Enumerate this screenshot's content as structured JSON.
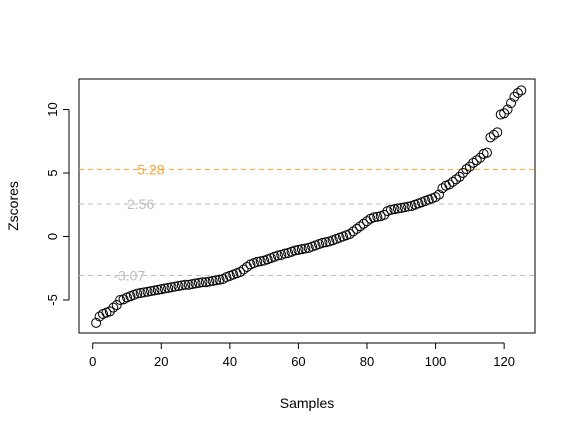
{
  "chart_data": {
    "type": "scatter",
    "xlabel": "Samples",
    "ylabel": "Zscores",
    "xlim": [
      -4.0,
      129.0
    ],
    "ylim": [
      -7.6,
      12.4
    ],
    "x_ticks": [
      0,
      20,
      40,
      60,
      80,
      100,
      120
    ],
    "y_ticks": [
      -5,
      0,
      5,
      10
    ],
    "grid": false,
    "marker": "open-circle",
    "marker_color": "#000000",
    "reference_lines": [
      {
        "value": 5.28,
        "label": "5.28",
        "color": "#F4A43A",
        "style": "dashed",
        "label_x": 13
      },
      {
        "value": 2.56,
        "label": "2.56",
        "color": "#BEBEBE",
        "style": "dashed",
        "label_x": 10
      },
      {
        "value": -3.07,
        "label": "-3.07",
        "color": "#BEBEBE",
        "style": "dashed",
        "label_x": 6
      }
    ],
    "x": [
      1,
      2,
      3,
      4,
      5,
      6,
      7,
      8,
      9,
      10,
      11,
      12,
      13,
      14,
      15,
      16,
      17,
      18,
      19,
      20,
      21,
      22,
      23,
      24,
      25,
      26,
      27,
      28,
      29,
      30,
      31,
      32,
      33,
      34,
      35,
      36,
      37,
      38,
      39,
      40,
      41,
      42,
      43,
      44,
      45,
      46,
      47,
      48,
      49,
      50,
      51,
      52,
      53,
      54,
      55,
      56,
      57,
      58,
      59,
      60,
      61,
      62,
      63,
      64,
      65,
      66,
      67,
      68,
      69,
      70,
      71,
      72,
      73,
      74,
      75,
      76,
      77,
      78,
      79,
      80,
      81,
      82,
      83,
      84,
      85,
      86,
      87,
      88,
      89,
      90,
      91,
      92,
      93,
      94,
      95,
      96,
      97,
      98,
      99,
      100,
      101,
      102,
      103,
      104,
      105,
      106,
      107,
      108,
      109,
      110,
      111,
      112,
      113,
      114,
      115,
      116,
      117,
      118,
      119,
      120,
      121,
      122,
      123,
      124,
      125
    ],
    "y": [
      -6.8,
      -6.3,
      -6.1,
      -6.0,
      -5.9,
      -5.6,
      -5.4,
      -5.0,
      -4.95,
      -4.8,
      -4.7,
      -4.6,
      -4.5,
      -4.45,
      -4.4,
      -4.35,
      -4.3,
      -4.25,
      -4.2,
      -4.15,
      -4.1,
      -4.05,
      -4.0,
      -3.95,
      -3.9,
      -3.85,
      -3.8,
      -3.8,
      -3.75,
      -3.7,
      -3.65,
      -3.6,
      -3.6,
      -3.55,
      -3.5,
      -3.45,
      -3.4,
      -3.35,
      -3.2,
      -3.1,
      -3.0,
      -2.9,
      -2.8,
      -2.6,
      -2.4,
      -2.2,
      -2.1,
      -2.0,
      -1.95,
      -1.9,
      -1.8,
      -1.7,
      -1.6,
      -1.5,
      -1.45,
      -1.35,
      -1.3,
      -1.2,
      -1.1,
      -1.05,
      -1.0,
      -0.95,
      -0.9,
      -0.8,
      -0.7,
      -0.6,
      -0.5,
      -0.45,
      -0.4,
      -0.3,
      -0.2,
      -0.1,
      0.0,
      0.1,
      0.2,
      0.4,
      0.6,
      0.8,
      1.0,
      1.2,
      1.4,
      1.5,
      1.55,
      1.6,
      1.7,
      2.0,
      2.1,
      2.15,
      2.2,
      2.25,
      2.3,
      2.35,
      2.4,
      2.5,
      2.6,
      2.7,
      2.8,
      2.9,
      3.0,
      3.1,
      3.3,
      3.8,
      4.0,
      4.1,
      4.3,
      4.5,
      4.7,
      5.0,
      5.3,
      5.5,
      5.8,
      6.0,
      6.2,
      6.5,
      6.6,
      7.8,
      8.0,
      8.2,
      9.6,
      9.7,
      10.0,
      10.5,
      11.0,
      11.3,
      11.5
    ]
  }
}
